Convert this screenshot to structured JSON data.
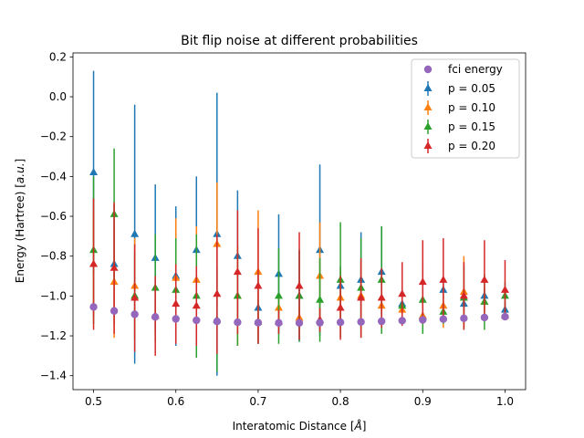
{
  "chart_data": {
    "type": "scatter",
    "title": "Bit flip noise at different probabilities",
    "xlabel_prefix": "Interatomic Distance [",
    "xlabel_unit": "Å",
    "xlabel_suffix": "]",
    "ylabel_prefix": "Energy (Hartree) [",
    "ylabel_unit": "a.u.",
    "ylabel_suffix": "]",
    "xlim": [
      0.475,
      1.025
    ],
    "ylim": [
      -1.47,
      0.22
    ],
    "x_ticks": [
      0.5,
      0.6,
      0.7,
      0.8,
      0.9,
      1.0
    ],
    "x_tick_labels": [
      "0.5",
      "0.6",
      "0.7",
      "0.8",
      "0.9",
      "1.0"
    ],
    "y_ticks": [
      0.2,
      0.0,
      -0.2,
      -0.4,
      -0.6,
      -0.8,
      -1.0,
      -1.2,
      -1.4
    ],
    "y_tick_labels": [
      "0.2",
      "0.0",
      "−0.2",
      "−0.4",
      "−0.6",
      "−0.8",
      "−1.0",
      "−1.2",
      "−1.4"
    ],
    "grid": false,
    "legend_position": "top-right",
    "x": [
      0.5,
      0.525,
      0.55,
      0.575,
      0.6,
      0.625,
      0.65,
      0.675,
      0.7,
      0.725,
      0.75,
      0.775,
      0.8,
      0.825,
      0.85,
      0.875,
      0.9,
      0.925,
      0.95,
      0.975,
      1.0
    ],
    "fci": {
      "name": "fci energy",
      "color": "#9467bd",
      "values": [
        -1.055,
        -1.075,
        -1.092,
        -1.105,
        -1.115,
        -1.122,
        -1.128,
        -1.132,
        -1.134,
        -1.135,
        -1.135,
        -1.134,
        -1.132,
        -1.13,
        -1.127,
        -1.124,
        -1.12,
        -1.116,
        -1.112,
        -1.108,
        -1.104
      ]
    },
    "series": [
      {
        "name": "p = 0.05",
        "color": "#1f77b4",
        "values": [
          -0.38,
          -0.84,
          -0.69,
          -0.81,
          -0.9,
          -0.77,
          -0.69,
          -0.8,
          -1.06,
          -0.89,
          -1.0,
          -0.77,
          -0.95,
          -0.92,
          -0.88,
          -1.04,
          -1.1,
          -0.97,
          -1.04,
          -1.0,
          -1.07
        ],
        "errors": [
          0.51,
          0.3,
          0.65,
          0.37,
          0.35,
          0.37,
          0.71,
          0.33,
          0.18,
          0.3,
          0.23,
          0.43,
          0.1,
          0.24,
          0.23,
          0.08,
          0.04,
          0.05,
          0.05,
          0.04,
          0.04
        ]
      },
      {
        "name": "p = 0.10",
        "color": "#ff7f0e",
        "values": [
          -0.84,
          -0.93,
          -0.95,
          -1.1,
          -0.91,
          -0.92,
          -0.74,
          -1.0,
          -0.88,
          -1.06,
          -1.11,
          -0.9,
          -1.01,
          -1.0,
          -1.05,
          -1.07,
          -1.1,
          -1.05,
          -0.98,
          -1.03,
          -1.1
        ],
        "errors": [
          0.26,
          0.28,
          0.24,
          0.1,
          0.3,
          0.27,
          0.31,
          0.25,
          0.31,
          0.06,
          0.05,
          0.27,
          0.15,
          0.17,
          0.04,
          0.05,
          0.04,
          0.11,
          0.18,
          0.04,
          0.02
        ]
      },
      {
        "name": "p = 0.15",
        "color": "#2ca02c",
        "values": [
          -0.77,
          -0.59,
          -1.0,
          -0.96,
          -0.97,
          -1.0,
          -1.12,
          -1.0,
          -1.13,
          -1.0,
          -1.0,
          -1.02,
          -0.92,
          -0.96,
          -0.92,
          -1.05,
          -1.02,
          -1.08,
          -1.01,
          -1.03,
          -1.0
        ],
        "errors": [
          0.37,
          0.33,
          0.22,
          0.27,
          0.26,
          0.31,
          0.26,
          0.25,
          0.11,
          0.24,
          0.23,
          0.21,
          0.29,
          0.25,
          0.27,
          0.09,
          0.17,
          0.06,
          0.16,
          0.14,
          0.07
        ]
      },
      {
        "name": "p = 0.20",
        "color": "#d62728",
        "values": [
          -0.84,
          -0.86,
          -1.01,
          -1.1,
          -1.04,
          -1.05,
          -0.99,
          -0.88,
          -0.95,
          -1.13,
          -0.95,
          -1.12,
          -1.06,
          -1.01,
          -1.01,
          -0.99,
          -0.93,
          -0.92,
          -1.0,
          -0.92,
          -0.97
        ],
        "errors": [
          0.33,
          0.33,
          0.27,
          0.2,
          0.2,
          0.2,
          0.3,
          0.31,
          0.29,
          0.06,
          0.27,
          0.06,
          0.16,
          0.2,
          0.15,
          0.16,
          0.21,
          0.21,
          0.17,
          0.2,
          0.15
        ]
      }
    ]
  }
}
